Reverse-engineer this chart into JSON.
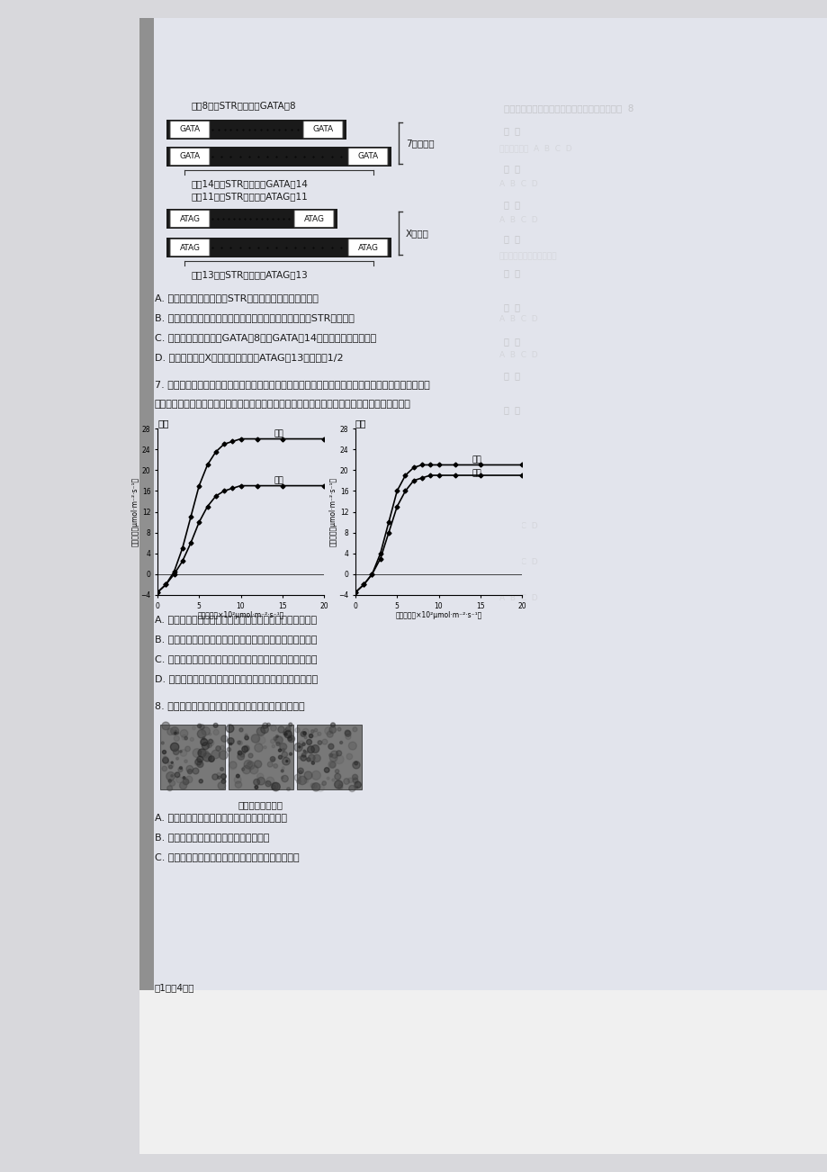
{
  "bg_color_outer": "#d8d8dc",
  "bg_color_page": "#e2e4ec",
  "text_color": "#1a1a1a",
  "text_color_faded": "#999999",
  "title_top_text": "重复8次，STR表示为（GATA）8",
  "label_7chr": "7号染色体",
  "label_14_11_a": "重复14次，STR表示为（GATA）14",
  "label_14_11_b": "重复11次，STR表示为（ATAG）11",
  "label_xchr": "X染色体",
  "label_13": "重复13次，STR表示为（ATAG）13",
  "q6_A": "A. 筛选出用于亲子鉴定的STR应具有不易发生变异的特点",
  "q6_B": "B. 为保证亲子鉴定的准确率，应选择足够数量不同位点的STR进行检测",
  "q6_C": "C. 有丝分裂时，图中（GATA）8和（GATA）14分别分配到两个子细胞",
  "q6_D": "D. 该女性的儿子X染色体含有图中（ATAG）13的概率是1/2",
  "q7_intro1": "7. 将桑树和大豆分别单独种植（单作）或两种隔行种植（间作），测得两种植物的光合速率如下图所示",
  "q7_intro2": "（注：光饱和点是使光合速率达到最大值时所需的最低光照强度）。据图分析，下列叙述正确的是",
  "q7_A": "A. 与单作相比，间作时两种植物的呼吸强度均没有受到影响",
  "q7_B": "B. 与单作相比，间作时两种植物光合作用的光饱和点均增大",
  "q7_C": "C. 间作虽然提高了桑树的光合速率但降低了大豆的光合速率",
  "q7_D": "D. 大豆植株开始积累有机物时的最低光照强度单作大于间作",
  "q8_intro": "8. 下图是胎儿手的发育过程图，下列有关说法错误的是",
  "q8_caption": "胎儿手的发育过程",
  "q8_A": "A. 胎儿手的发育过程中细胞的凋亡使得五指分开",
  "q8_B": "B. 此时手的组成细胞中不存在衰老的细胞",
  "q8_C": "C. 若此时受到致癌因子的影响，细胞更容易发生癌变",
  "page_num": "第1页共4页）",
  "mulberry_x": [
    0,
    1,
    2,
    3,
    4,
    5,
    6,
    7,
    8,
    9,
    10,
    12,
    15,
    20
  ],
  "mulberry_jian": [
    -3.5,
    -2,
    0.5,
    5,
    11,
    17,
    21,
    23.5,
    25,
    25.5,
    26,
    26,
    26,
    26
  ],
  "mulberry_dan": [
    -3.5,
    -2,
    0,
    2.5,
    6,
    10,
    13,
    15,
    16,
    16.5,
    17,
    17,
    17,
    17
  ],
  "soy_x": [
    0,
    1,
    2,
    3,
    4,
    5,
    6,
    7,
    8,
    9,
    10,
    12,
    15,
    20
  ],
  "soy_dan": [
    -3.5,
    -2,
    0,
    4,
    10,
    16,
    19,
    20.5,
    21,
    21,
    21,
    21,
    21,
    21
  ],
  "soy_jian": [
    -3.5,
    -2,
    0,
    3,
    8,
    13,
    16,
    18,
    18.5,
    19,
    19,
    19,
    19,
    19
  ],
  "graph_ylabel_mul": "光合速率（μmol·m⁻²·s⁻¹）",
  "graph_xlabel": "光照强度（×10²μmol·m⁻²·s⁻¹）",
  "graph_ylabel_soy": "光合速率（μmol·m⁻²·s⁻¹）"
}
